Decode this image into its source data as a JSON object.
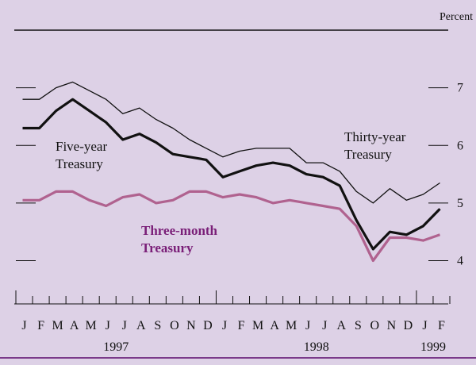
{
  "chart_data": {
    "type": "line",
    "y_unit_label": "Percent",
    "categories": [
      "J",
      "F",
      "M",
      "A",
      "M",
      "J",
      "J",
      "A",
      "S",
      "O",
      "N",
      "D",
      "J",
      "F",
      "M",
      "A",
      "M",
      "J",
      "J",
      "A",
      "S",
      "O",
      "N",
      "D",
      "J",
      "F"
    ],
    "year_labels": [
      "1997",
      "1998",
      "1999"
    ],
    "series": [
      {
        "name": "Thirty-year Treasury",
        "color": "#111111",
        "width": 1.3,
        "values": [
          6.8,
          6.8,
          7.0,
          7.1,
          6.95,
          6.8,
          6.55,
          6.65,
          6.45,
          6.3,
          6.1,
          5.95,
          5.8,
          5.9,
          5.95,
          5.95,
          5.95,
          5.7,
          5.7,
          5.55,
          5.2,
          5.0,
          5.25,
          5.05,
          5.15,
          5.35
        ]
      },
      {
        "name": "Five-year Treasury",
        "color": "#111111",
        "width": 3.2,
        "values": [
          6.3,
          6.3,
          6.6,
          6.8,
          6.6,
          6.4,
          6.1,
          6.2,
          6.05,
          5.85,
          5.8,
          5.75,
          5.45,
          5.55,
          5.65,
          5.7,
          5.65,
          5.5,
          5.45,
          5.3,
          4.7,
          4.2,
          4.5,
          4.45,
          4.6,
          4.9
        ]
      },
      {
        "name": "Three-month Treasury",
        "color": "#b0628f",
        "width": 3.2,
        "values": [
          5.05,
          5.05,
          5.2,
          5.2,
          5.05,
          4.95,
          5.1,
          5.15,
          5.0,
          5.05,
          5.2,
          5.2,
          5.1,
          5.15,
          5.1,
          5.0,
          5.05,
          5.0,
          4.95,
          4.9,
          4.6,
          4.0,
          4.4,
          4.4,
          4.35,
          4.45
        ]
      }
    ],
    "annotations": [
      {
        "lines": [
          "Thirty-year",
          "Treasury"
        ],
        "color": "#111111",
        "bold": false
      },
      {
        "lines": [
          "Five-year",
          "Treasury"
        ],
        "color": "#111111",
        "bold": false
      },
      {
        "lines": [
          "Three-month",
          "Treasury"
        ],
        "color": "#7a1f78",
        "bold": true
      }
    ],
    "ylim": [
      3.25,
      8.0
    ],
    "yticks": [
      4,
      5,
      6,
      7
    ],
    "grid": false
  }
}
